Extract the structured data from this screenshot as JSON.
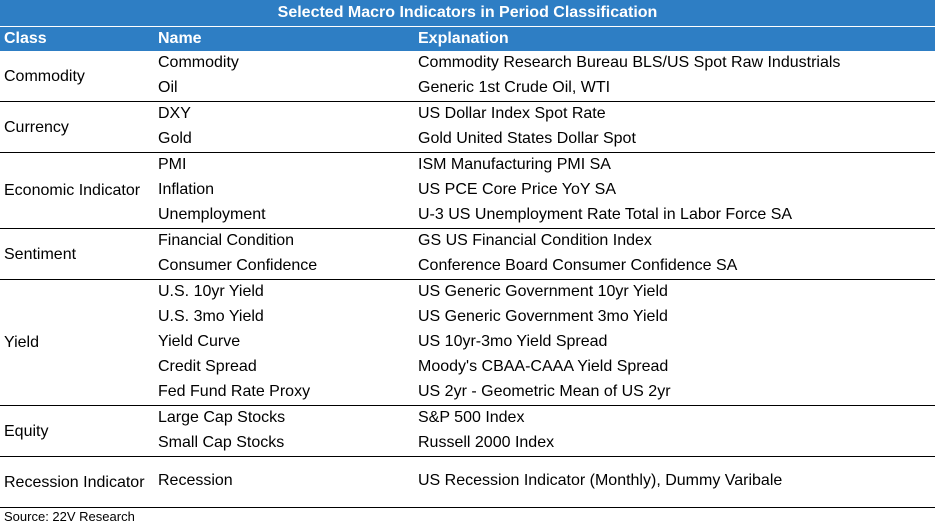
{
  "title": "Selected Macro Indicators in Period Classification",
  "headers": {
    "class": "Class",
    "name": "Name",
    "explanation": "Explanation"
  },
  "groups": [
    {
      "class": "Commodity",
      "rows": [
        {
          "name": "Commodity",
          "explanation": "Commodity Research Bureau BLS/US Spot Raw Industrials"
        },
        {
          "name": "Oil",
          "explanation": "Generic 1st Crude Oil, WTI"
        }
      ]
    },
    {
      "class": "Currency",
      "rows": [
        {
          "name": "DXY",
          "explanation": "US Dollar Index Spot Rate"
        },
        {
          "name": "Gold",
          "explanation": "Gold United States Dollar Spot"
        }
      ]
    },
    {
      "class": "Economic Indicator",
      "rows": [
        {
          "name": "PMI",
          "explanation": "ISM Manufacturing PMI SA"
        },
        {
          "name": "Inflation",
          "explanation": "US PCE Core Price YoY SA"
        },
        {
          "name": "Unemployment",
          "explanation": "U-3 US Unemployment Rate Total in Labor Force SA"
        }
      ]
    },
    {
      "class": "Sentiment",
      "rows": [
        {
          "name": "Financial Condition",
          "explanation": "GS US Financial Condition Index"
        },
        {
          "name": "Consumer Confidence",
          "explanation": "Conference Board Consumer Confidence SA"
        }
      ]
    },
    {
      "class": "Yield",
      "rows": [
        {
          "name": "U.S. 10yr Yield",
          "explanation": "US Generic Government 10yr Yield"
        },
        {
          "name": "U.S. 3mo Yield",
          "explanation": "US Generic Government 3mo Yield"
        },
        {
          "name": "Yield Curve",
          "explanation": "US 10yr-3mo Yield Spread"
        },
        {
          "name": "Credit Spread",
          "explanation": "Moody's CBAA-CAAA Yield Spread"
        },
        {
          "name": "Fed Fund Rate Proxy",
          "explanation": "US 2yr - Geometric Mean of US 2yr"
        }
      ]
    },
    {
      "class": "Equity",
      "rows": [
        {
          "name": "Large Cap Stocks",
          "explanation": "S&P 500 Index"
        },
        {
          "name": "Small Cap Stocks",
          "explanation": "Russell 2000 Index"
        }
      ]
    },
    {
      "class": "Recession Indicator",
      "rows": [
        {
          "name": "Recession",
          "explanation": "US Recession Indicator (Monthly), Dummy Varibale"
        }
      ]
    }
  ],
  "source": "Source: 22V Research"
}
